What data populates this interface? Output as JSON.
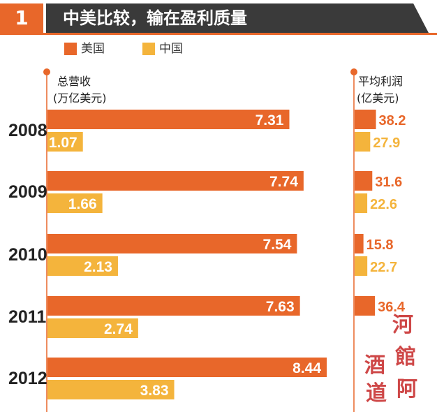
{
  "header": {
    "number": "1",
    "title": "中美比较，输在盈利质量"
  },
  "legend": [
    {
      "label": "美国",
      "color": "#e8672a"
    },
    {
      "label": "中国",
      "color": "#f4b43c"
    }
  ],
  "chart_data": {
    "type": "bar",
    "left_panel": {
      "ylabel_line1": "总营收",
      "ylabel_line2": "(万亿美元)",
      "categories": [
        "2008",
        "2009",
        "2010",
        "2011",
        "2012"
      ],
      "series": [
        {
          "name": "美国",
          "color": "#e8672a",
          "values": [
            7.31,
            7.74,
            7.54,
            7.63,
            8.44
          ]
        },
        {
          "name": "中国",
          "color": "#f4b43c",
          "values": [
            1.07,
            1.66,
            2.13,
            2.74,
            3.83
          ]
        }
      ]
    },
    "right_panel": {
      "ylabel_line1": "平均利润",
      "ylabel_line2": "(亿美元)",
      "categories": [
        "2008",
        "2009",
        "2010",
        "2011",
        "2012"
      ],
      "series": [
        {
          "name": "美国",
          "color": "#e8672a",
          "values": [
            38.2,
            31.6,
            15.8,
            36.4,
            null
          ]
        },
        {
          "name": "中国",
          "color": "#f4b43c",
          "values": [
            27.9,
            22.6,
            22.7,
            null,
            null
          ]
        }
      ]
    }
  },
  "watermark": {
    "chars": [
      "河",
      "酒",
      "館",
      "道",
      "阿"
    ]
  }
}
